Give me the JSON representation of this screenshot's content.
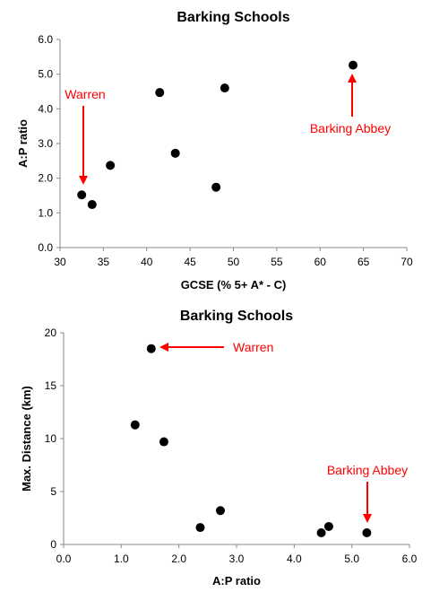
{
  "chart_data": [
    {
      "type": "scatter",
      "title": "Barking Schools",
      "xlabel": "GCSE (% 5+ A* - C)",
      "ylabel": "A:P ratio",
      "xlim": [
        30,
        70
      ],
      "ylim": [
        0,
        6
      ],
      "xticks": [
        "30",
        "35",
        "40",
        "45",
        "50",
        "55",
        "60",
        "65",
        "70"
      ],
      "yticks": [
        "0.0",
        "1.0",
        "2.0",
        "3.0",
        "4.0",
        "5.0",
        "6.0"
      ],
      "grid": false,
      "points": [
        {
          "x": 32.5,
          "y": 1.52
        },
        {
          "x": 33.7,
          "y": 1.24
        },
        {
          "x": 35.8,
          "y": 2.37
        },
        {
          "x": 41.5,
          "y": 4.47
        },
        {
          "x": 43.3,
          "y": 2.72
        },
        {
          "x": 48.0,
          "y": 1.74
        },
        {
          "x": 49.0,
          "y": 4.6
        },
        {
          "x": 63.8,
          "y": 5.26
        }
      ],
      "annotations": [
        {
          "text": "Warren",
          "color": "#ff0000",
          "target": {
            "x": 32.5,
            "y": 1.52
          }
        },
        {
          "text": "Barking Abbey",
          "color": "#ff0000",
          "target": {
            "x": 63.8,
            "y": 5.26
          }
        }
      ]
    },
    {
      "type": "scatter",
      "title": "Barking Schools",
      "xlabel": "A:P ratio",
      "ylabel": "Max. Distance (km)",
      "xlim": [
        0,
        6
      ],
      "ylim": [
        0,
        20
      ],
      "xticks": [
        "0.0",
        "1.0",
        "2.0",
        "3.0",
        "4.0",
        "5.0",
        "6.0"
      ],
      "yticks": [
        "0",
        "5",
        "10",
        "15",
        "20"
      ],
      "grid": false,
      "points": [
        {
          "x": 1.24,
          "y": 11.3
        },
        {
          "x": 1.52,
          "y": 18.5
        },
        {
          "x": 1.74,
          "y": 9.7
        },
        {
          "x": 2.37,
          "y": 1.6
        },
        {
          "x": 2.72,
          "y": 3.2
        },
        {
          "x": 4.47,
          "y": 1.1
        },
        {
          "x": 4.6,
          "y": 1.7
        },
        {
          "x": 5.26,
          "y": 1.1
        }
      ],
      "annotations": [
        {
          "text": "Warren",
          "color": "#ff0000",
          "target": {
            "x": 1.52,
            "y": 18.5
          }
        },
        {
          "text": "Barking Abbey",
          "color": "#ff0000",
          "target": {
            "x": 5.26,
            "y": 1.1
          }
        }
      ]
    }
  ]
}
